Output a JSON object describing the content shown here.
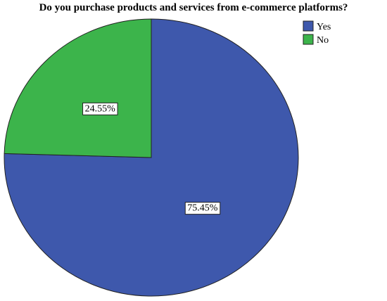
{
  "chart_data": {
    "type": "pie",
    "title": "Do you purchase products and services from e-commerce platforms?",
    "categories": [
      "Yes",
      "No"
    ],
    "values": [
      75.45,
      24.55
    ],
    "value_labels": [
      "75.45%",
      "24.55%"
    ],
    "colors": [
      "#3e58ac",
      "#3cb44b"
    ],
    "start_angle": 0,
    "direction": "clockwise",
    "legend": "top-right"
  }
}
